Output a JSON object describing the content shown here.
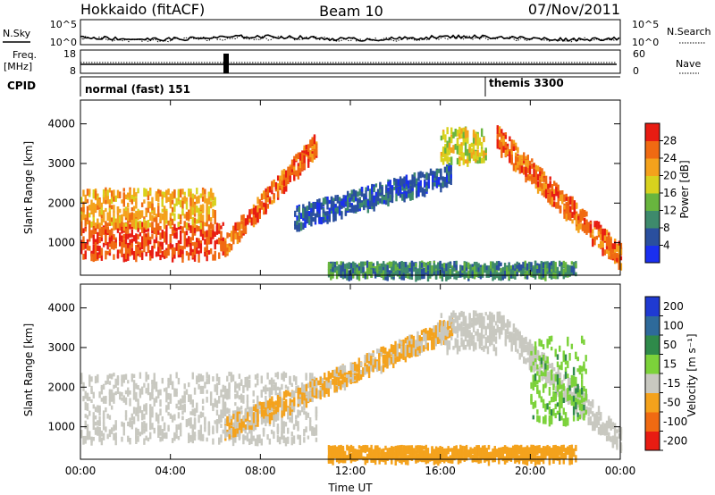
{
  "header": {
    "radar": "Hokkaido (fitACF)",
    "beam": "Beam 10",
    "date": "07/Nov/2011"
  },
  "top_panels": {
    "nsky_label": "N.Sky",
    "nsearch_label": "N.Search",
    "freq_label_line1": "Freq.",
    "freq_label_line2": "[MHz]",
    "nave_label": "Nave",
    "cpid_label": "CPID",
    "noise_ticks_left": [
      "10^5",
      "10^0"
    ],
    "noise_ticks_right": [
      "10^5",
      "10^0"
    ],
    "freq_ticks": [
      "18",
      "8"
    ],
    "nave_ticks": [
      "60",
      "0"
    ],
    "cpid_segments": [
      {
        "name": "normal (fast) 151",
        "start_hour": 0
      },
      {
        "name": "themis 3300",
        "start_hour": 18
      }
    ]
  },
  "chart_data": [
    {
      "type": "heatmap",
      "title": "",
      "xlabel": "",
      "ylabel": "Slant Range [km]",
      "xlim": [
        0,
        24
      ],
      "ylim": [
        180,
        4600
      ],
      "x_ticks": [
        "00:00",
        "04:00",
        "08:00",
        "12:00",
        "16:00",
        "20:00",
        "00:00"
      ],
      "y_ticks": [
        1000,
        2000,
        3000,
        4000
      ],
      "colorbar": {
        "label": "Power [dB]",
        "ticks": [
          4,
          8,
          12,
          16,
          20,
          24,
          28
        ],
        "colors": [
          "#1a2ff0",
          "#2a4f9e",
          "#3e8a6c",
          "#68b53e",
          "#d8d21e",
          "#f4a21c",
          "#f06a12",
          "#e81c12"
        ]
      },
      "features": [
        {
          "name": "E-region / near-range echoes",
          "hours": [
            0,
            6.3
          ],
          "range_km": [
            700,
            1550
          ],
          "level_db": 28
        },
        {
          "name": "Striated F-region echoes",
          "hours": [
            0,
            6
          ],
          "range_km": [
            1500,
            2400
          ],
          "level_db": 22
        },
        {
          "name": "Rising F-region band",
          "hours": [
            6.4,
            10.5
          ],
          "range_km": [
            1000,
            3600
          ],
          "level_db": 26
        },
        {
          "name": "Weak rising band",
          "hours": [
            9.5,
            16.5
          ],
          "range_km": [
            1700,
            2800
          ],
          "level_db": 6
        },
        {
          "name": "Night-side high-range echoes",
          "hours": [
            16,
            18
          ],
          "range_km": [
            3100,
            3950
          ],
          "level_db": 18
        },
        {
          "name": "Descending evening band",
          "hours": [
            18.5,
            24
          ],
          "range_km": [
            700,
            3700
          ],
          "level_db": 26
        },
        {
          "name": "Ground scatter floor",
          "hours": [
            11,
            22
          ],
          "range_km": [
            200,
            550
          ],
          "level_db": 10
        }
      ]
    },
    {
      "type": "heatmap",
      "title": "",
      "xlabel": "Time UT",
      "ylabel": "Slant Range [km]",
      "xlim": [
        0,
        24
      ],
      "ylim": [
        180,
        4600
      ],
      "x_ticks": [
        "00:00",
        "04:00",
        "08:00",
        "12:00",
        "16:00",
        "20:00",
        "00:00"
      ],
      "y_ticks": [
        1000,
        2000,
        3000,
        4000
      ],
      "colorbar": {
        "label": "Velocity [m s⁻¹]",
        "ticks": [
          200,
          100,
          50,
          15,
          -15,
          -50,
          -100,
          -200
        ],
        "colors": [
          "#1f3ad2",
          "#2e6a9a",
          "#2f8a4a",
          "#7cd23a",
          "#c8c8c0",
          "#f4a21c",
          "#f06a12",
          "#e81c12"
        ]
      },
      "features": [
        {
          "name": "Near-zero velocity echoes",
          "hours": [
            0,
            10.5
          ],
          "range_km": [
            700,
            2400
          ],
          "velocity": 0
        },
        {
          "name": "Rising band",
          "hours": [
            6.4,
            16.5
          ],
          "range_km": [
            1000,
            3600
          ],
          "velocity": -20
        },
        {
          "name": "Night-side echoes",
          "hours": [
            16,
            18.5
          ],
          "range_km": [
            3000,
            3950
          ],
          "velocity": 0
        },
        {
          "name": "Evening band",
          "hours": [
            18.5,
            24
          ],
          "range_km": [
            700,
            3700
          ],
          "velocity": 0
        },
        {
          "name": "Positive velocity streak",
          "hours": [
            20,
            22.5
          ],
          "range_km": [
            1200,
            3300
          ],
          "velocity": 40
        },
        {
          "name": "Ground scatter floor",
          "hours": [
            11,
            22
          ],
          "range_km": [
            200,
            550
          ],
          "velocity": -30
        }
      ]
    }
  ]
}
